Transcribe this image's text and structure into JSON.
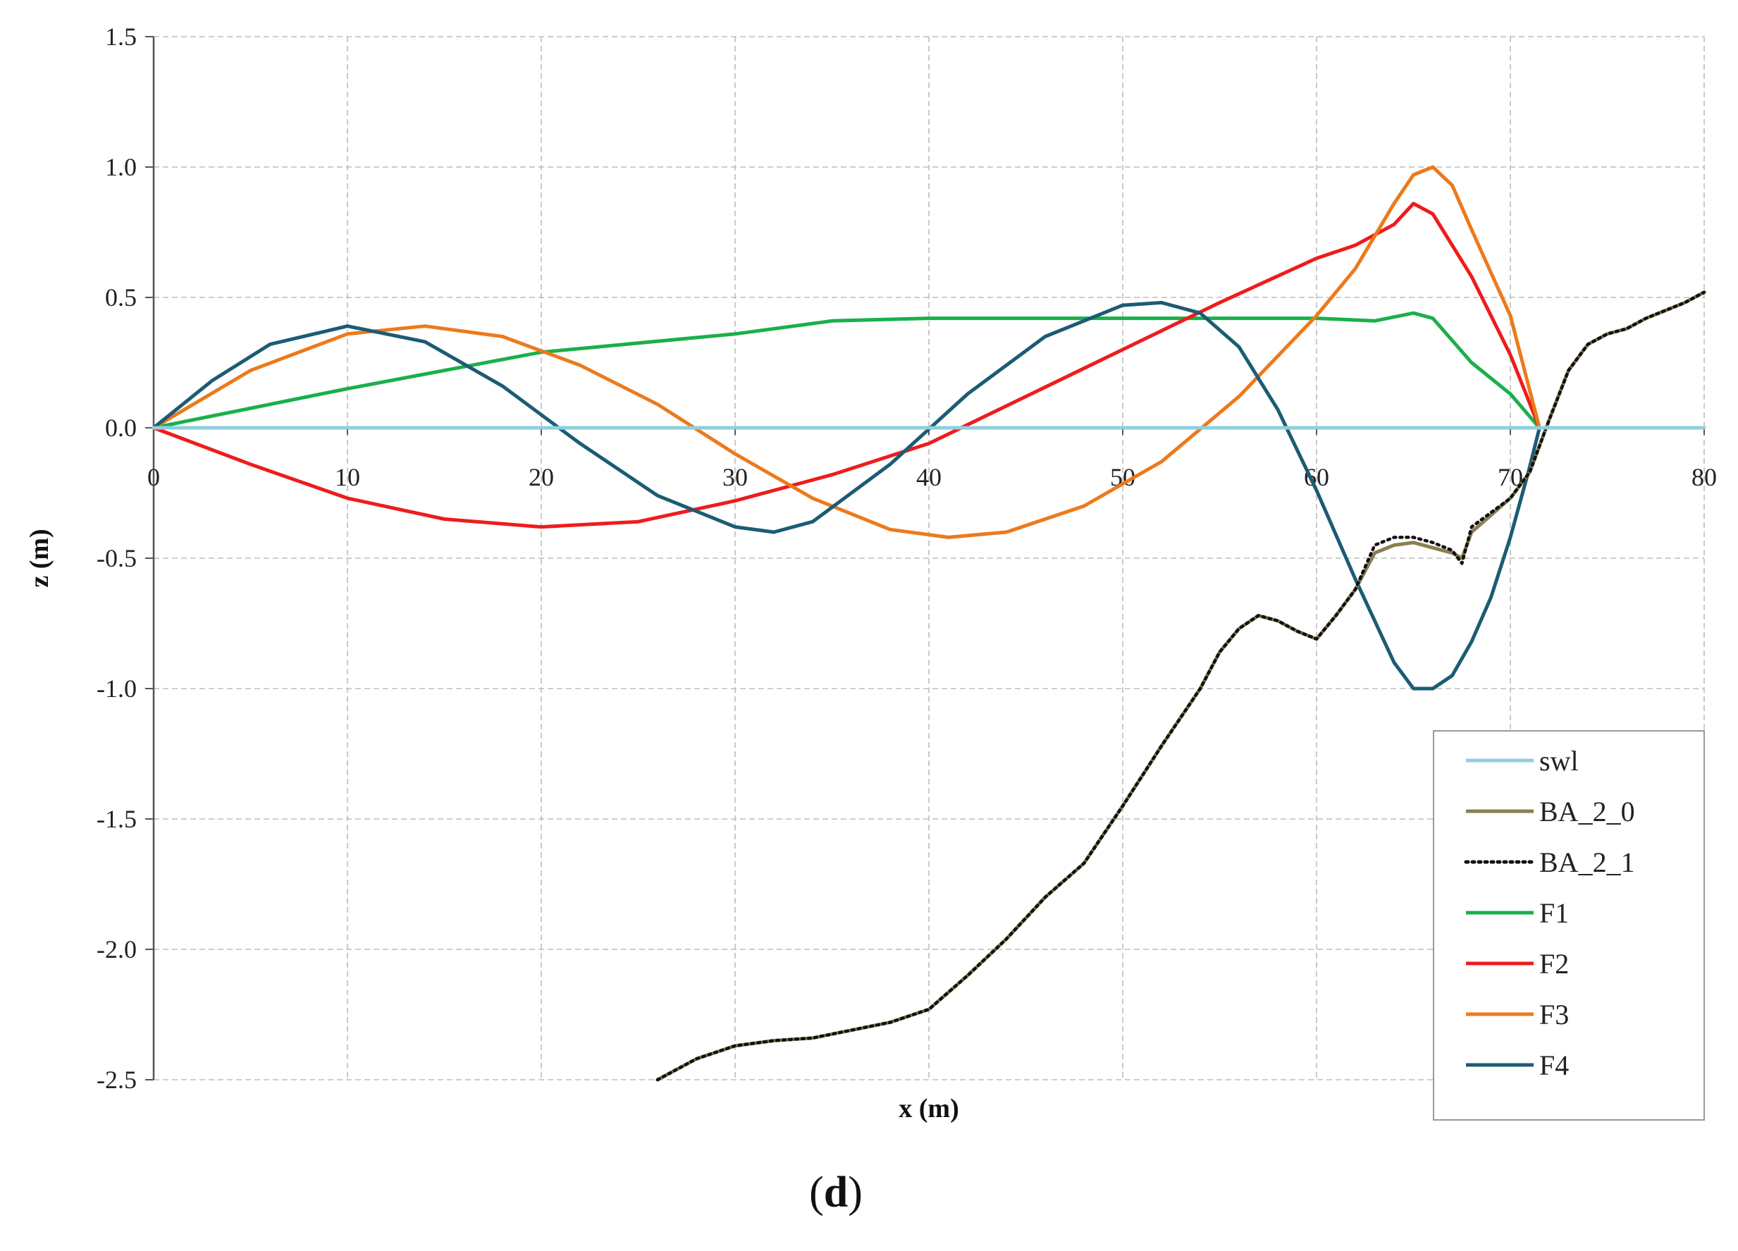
{
  "caption_parts": {
    "open": "(",
    "letter": "d",
    "close": ")"
  },
  "chart_data": {
    "type": "line",
    "xlabel": "x (m)",
    "ylabel": "z (m)",
    "xlim": [
      0,
      80
    ],
    "ylim": [
      -2.5,
      1.5
    ],
    "x_ticks": [
      "0",
      "10",
      "20",
      "30",
      "40",
      "50",
      "60",
      "70",
      "80"
    ],
    "y_ticks": [
      "1.5",
      "1.0",
      "0.5",
      "0.0",
      "-0.5",
      "-1.0",
      "-1.5",
      "-2.0",
      "-2.5"
    ],
    "grid": "dashed major gridlines",
    "legend_position": "bottom-right",
    "series": [
      {
        "name": "swl",
        "color": "#8ecfe0",
        "style": "solid",
        "x": [
          0,
          80
        ],
        "y": [
          0,
          0
        ]
      },
      {
        "name": "BA_2_0",
        "color": "#8b7f52",
        "style": "solid",
        "x": [
          26,
          28,
          30,
          32,
          34,
          36,
          38,
          40,
          42,
          44,
          46,
          48,
          50,
          52,
          54,
          55,
          56,
          57,
          58,
          59,
          60,
          61,
          62,
          63,
          64,
          65,
          66,
          67,
          67.5,
          68,
          70,
          71,
          72,
          73,
          74,
          75,
          76,
          77,
          78,
          79,
          80
        ],
        "y": [
          -2.5,
          -2.42,
          -2.37,
          -2.35,
          -2.34,
          -2.31,
          -2.28,
          -2.23,
          -2.1,
          -1.96,
          -1.8,
          -1.67,
          -1.45,
          -1.22,
          -1.0,
          -0.86,
          -0.77,
          -0.72,
          -0.74,
          -0.78,
          -0.81,
          -0.72,
          -0.62,
          -0.48,
          -0.45,
          -0.44,
          -0.46,
          -0.48,
          -0.5,
          -0.4,
          -0.27,
          -0.17,
          0.03,
          0.22,
          0.32,
          0.36,
          0.38,
          0.42,
          0.45,
          0.48,
          0.52
        ]
      },
      {
        "name": "BA_2_1",
        "color": "#111111",
        "style": "dotted",
        "x": [
          26,
          28,
          30,
          32,
          34,
          36,
          38,
          40,
          42,
          44,
          46,
          48,
          50,
          52,
          54,
          55,
          56,
          57,
          58,
          59,
          60,
          61,
          62,
          63,
          64,
          65,
          66,
          67,
          67.5,
          68,
          70,
          71,
          72,
          73,
          74,
          75,
          76,
          77,
          78,
          79,
          80
        ],
        "y": [
          -2.5,
          -2.42,
          -2.37,
          -2.35,
          -2.34,
          -2.31,
          -2.28,
          -2.23,
          -2.1,
          -1.96,
          -1.8,
          -1.67,
          -1.45,
          -1.22,
          -1.0,
          -0.86,
          -0.77,
          -0.72,
          -0.74,
          -0.78,
          -0.81,
          -0.72,
          -0.62,
          -0.45,
          -0.42,
          -0.42,
          -0.44,
          -0.47,
          -0.52,
          -0.38,
          -0.27,
          -0.17,
          0.03,
          0.22,
          0.32,
          0.36,
          0.38,
          0.42,
          0.45,
          0.48,
          0.52
        ]
      },
      {
        "name": "F1",
        "color": "#1aaf4b",
        "style": "solid",
        "x": [
          0,
          10,
          20,
          30,
          35,
          40,
          50,
          60,
          63,
          65,
          66,
          68,
          70,
          71.5
        ],
        "y": [
          0,
          0.15,
          0.29,
          0.36,
          0.41,
          0.42,
          0.42,
          0.42,
          0.41,
          0.44,
          0.42,
          0.25,
          0.13,
          0.0
        ]
      },
      {
        "name": "F2",
        "color": "#ee1c1c",
        "style": "solid",
        "x": [
          0,
          5,
          10,
          15,
          20,
          25,
          30,
          35,
          40,
          45,
          50,
          55,
          60,
          62,
          64,
          65,
          66,
          68,
          70,
          71.5
        ],
        "y": [
          0,
          -0.14,
          -0.27,
          -0.35,
          -0.38,
          -0.36,
          -0.28,
          -0.18,
          -0.06,
          0.12,
          0.3,
          0.48,
          0.65,
          0.7,
          0.78,
          0.86,
          0.82,
          0.58,
          0.28,
          0.0
        ]
      },
      {
        "name": "F3",
        "color": "#ec7a1c",
        "style": "solid",
        "x": [
          0,
          5,
          10,
          14,
          18,
          22,
          26,
          30,
          34,
          38,
          41,
          44,
          48,
          52,
          56,
          60,
          62,
          64,
          65,
          66,
          67,
          68,
          70,
          71.5
        ],
        "y": [
          0,
          0.22,
          0.36,
          0.39,
          0.35,
          0.24,
          0.09,
          -0.1,
          -0.27,
          -0.39,
          -0.42,
          -0.4,
          -0.3,
          -0.13,
          0.12,
          0.43,
          0.61,
          0.86,
          0.97,
          1.0,
          0.93,
          0.76,
          0.43,
          0.0
        ]
      },
      {
        "name": "F4",
        "color": "#1c5b74",
        "style": "solid",
        "x": [
          0,
          3,
          6,
          10,
          14,
          18,
          22,
          26,
          30,
          32,
          34,
          38,
          42,
          46,
          50,
          52,
          54,
          56,
          58,
          60,
          62,
          64,
          65,
          66,
          67,
          68,
          69,
          70,
          71,
          71.5
        ],
        "y": [
          0,
          0.18,
          0.32,
          0.39,
          0.33,
          0.16,
          -0.06,
          -0.26,
          -0.38,
          -0.4,
          -0.36,
          -0.14,
          0.13,
          0.35,
          0.47,
          0.48,
          0.44,
          0.31,
          0.07,
          -0.24,
          -0.58,
          -0.9,
          -1.0,
          -1.0,
          -0.95,
          -0.82,
          -0.65,
          -0.42,
          -0.15,
          0.0
        ]
      }
    ]
  }
}
